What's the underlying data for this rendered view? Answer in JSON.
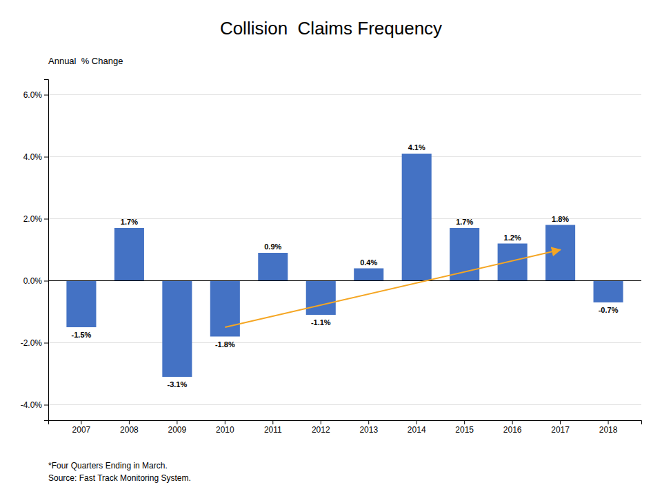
{
  "chart_data": {
    "type": "bar",
    "title": "Collision  Claims Frequency",
    "y_label": "Annual  % Change",
    "categories": [
      "2007",
      "2008",
      "2009",
      "2010",
      "2011",
      "2012",
      "2013",
      "2014",
      "2015",
      "2016",
      "2017",
      "2018"
    ],
    "values": [
      -1.5,
      1.7,
      -3.1,
      -1.8,
      0.9,
      -1.1,
      0.4,
      4.1,
      1.7,
      1.2,
      1.8,
      -0.7
    ],
    "value_labels": [
      "-1.5%",
      "1.7%",
      "-3.1%",
      "-1.8%",
      "0.9%",
      "-1.1%",
      "0.4%",
      "4.1%",
      "1.7%",
      "1.2%",
      "1.8%",
      "-0.7%"
    ],
    "data_labels": true,
    "color": "#4472C4",
    "ylim": [
      -4.5,
      6.5
    ],
    "yticks": [
      {
        "value": -4.0,
        "label": "-4.0%"
      },
      {
        "value": -2.0,
        "label": "-2.0%"
      },
      {
        "value": 0.0,
        "label": "0.0%"
      },
      {
        "value": 2.0,
        "label": "2.0%"
      },
      {
        "value": 4.0,
        "label": "4.0%"
      },
      {
        "value": 6.0,
        "label": "6.0%"
      }
    ],
    "grid": true,
    "arrow": {
      "start": {
        "category": "2010",
        "y": -1.5
      },
      "end": {
        "category": "2017",
        "y": 1.0
      },
      "color": "#F5A623"
    },
    "notes": [
      "*Four Quarters Ending in March.",
      "Source: Fast Track Monitoring System."
    ]
  }
}
